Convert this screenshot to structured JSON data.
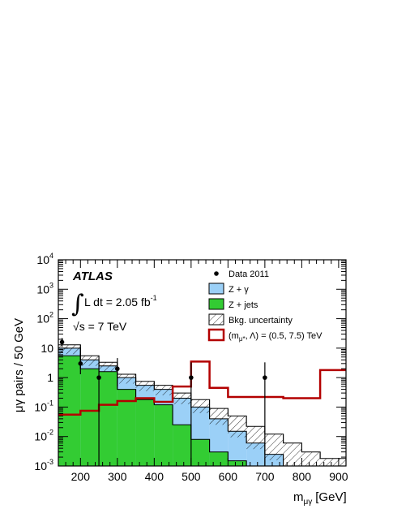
{
  "chart_data": {
    "type": "histogram",
    "title": "",
    "experiment": "ATLAS",
    "luminosity_label": "L dt = 2.05 fb",
    "luminosity_exponent": "-1",
    "energy_label": "s = 7 TeV",
    "sqrt_symbol": "√",
    "integral_symbol": "∫",
    "xlabel": "m",
    "xlabel_sub": "μγ",
    "xlabel_unit": "[GeV]",
    "ylabel": "μγ pairs / 50 GeV",
    "xlim": [
      140,
      920
    ],
    "ylim": [
      0.001,
      10000
    ],
    "yscale": "log",
    "bin_edges": [
      140,
      150,
      200,
      250,
      300,
      350,
      400,
      450,
      500,
      550,
      600,
      650,
      700,
      750,
      800,
      850,
      900,
      920
    ],
    "x_ticks": [
      200,
      300,
      400,
      500,
      600,
      700,
      800,
      900
    ],
    "x_tick_labels": [
      "200",
      "300",
      "400",
      "500",
      "600",
      "700",
      "800",
      "900"
    ],
    "y_ticks": [
      0.001,
      0.01,
      0.1,
      1,
      10,
      100,
      1000,
      10000
    ],
    "y_tick_labels": [
      {
        "base": "10",
        "exp": "-3"
      },
      {
        "base": "10",
        "exp": "-2"
      },
      {
        "base": "10",
        "exp": "-1"
      },
      {
        "base": "1",
        "exp": ""
      },
      {
        "base": "10",
        "exp": ""
      },
      {
        "base": "10",
        "exp": "2"
      },
      {
        "base": "10",
        "exp": "3"
      },
      {
        "base": "10",
        "exp": "4"
      }
    ],
    "series": [
      {
        "name": "Z + jets",
        "kind": "stack-bottom",
        "color": "#33cc33",
        "values": [
          5.5,
          5.5,
          2.0,
          1.6,
          0.4,
          0.18,
          0.12,
          0.025,
          0.008,
          0.003,
          0.0015,
          0.0008,
          0.0008,
          0.0008,
          0.0008,
          0.0008,
          0.0008
        ]
      },
      {
        "name": "Z + γ",
        "kind": "stack-total",
        "color": "#9bd0f7",
        "values": [
          10,
          10,
          4.0,
          2.5,
          1.0,
          0.55,
          0.4,
          0.2,
          0.1,
          0.04,
          0.015,
          0.006,
          0.0025,
          0.001,
          0.0009,
          0.0009,
          0.0009
        ]
      },
      {
        "name": "Bkg. uncertainty",
        "kind": "band",
        "color": "#000000",
        "upper": [
          13,
          13,
          5.5,
          3.3,
          1.3,
          0.75,
          0.55,
          0.3,
          0.18,
          0.09,
          0.05,
          0.022,
          0.012,
          0.006,
          0.003,
          0.0018,
          0.0018
        ],
        "lower": [
          10,
          10,
          4.0,
          2.5,
          1.0,
          0.55,
          0.4,
          0.2,
          0.1,
          0.04,
          0.015,
          0.006,
          0.0025,
          0.001,
          0.0009,
          0.0009,
          0.0009
        ]
      },
      {
        "name": "(m_μ*, Λ) = (0.5, 7.5) TeV",
        "kind": "signal",
        "color": "#b30000",
        "values": [
          0.055,
          0.055,
          0.075,
          0.12,
          0.16,
          0.2,
          0.15,
          0.5,
          3.5,
          0.45,
          0.22,
          0.22,
          0.22,
          0.2,
          0.2,
          1.8,
          1.8
        ]
      }
    ],
    "data": {
      "name": "Data 2011",
      "x": [
        150,
        200,
        250,
        300,
        500,
        700
      ],
      "y": [
        16,
        3,
        1,
        2,
        1,
        1
      ],
      "err_up": [
        22,
        6.5,
        3.3,
        4.6,
        3.3,
        3.3
      ],
      "err_down": [
        11,
        1.3,
        0.001,
        0.5,
        0.001,
        0.001
      ]
    },
    "legend": {
      "placement": "top-right",
      "entries": [
        {
          "label": "Data 2011",
          "symbol": "marker"
        },
        {
          "label": "Z + γ",
          "symbol": "fill-blue"
        },
        {
          "label": "Z + jets",
          "symbol": "fill-green"
        },
        {
          "label": "Bkg. uncertainty",
          "symbol": "hatch"
        },
        {
          "label": "(m",
          "sub": "μ*",
          "label2": ", Λ) = (0.5, 7.5) TeV",
          "symbol": "line-red"
        }
      ]
    }
  }
}
